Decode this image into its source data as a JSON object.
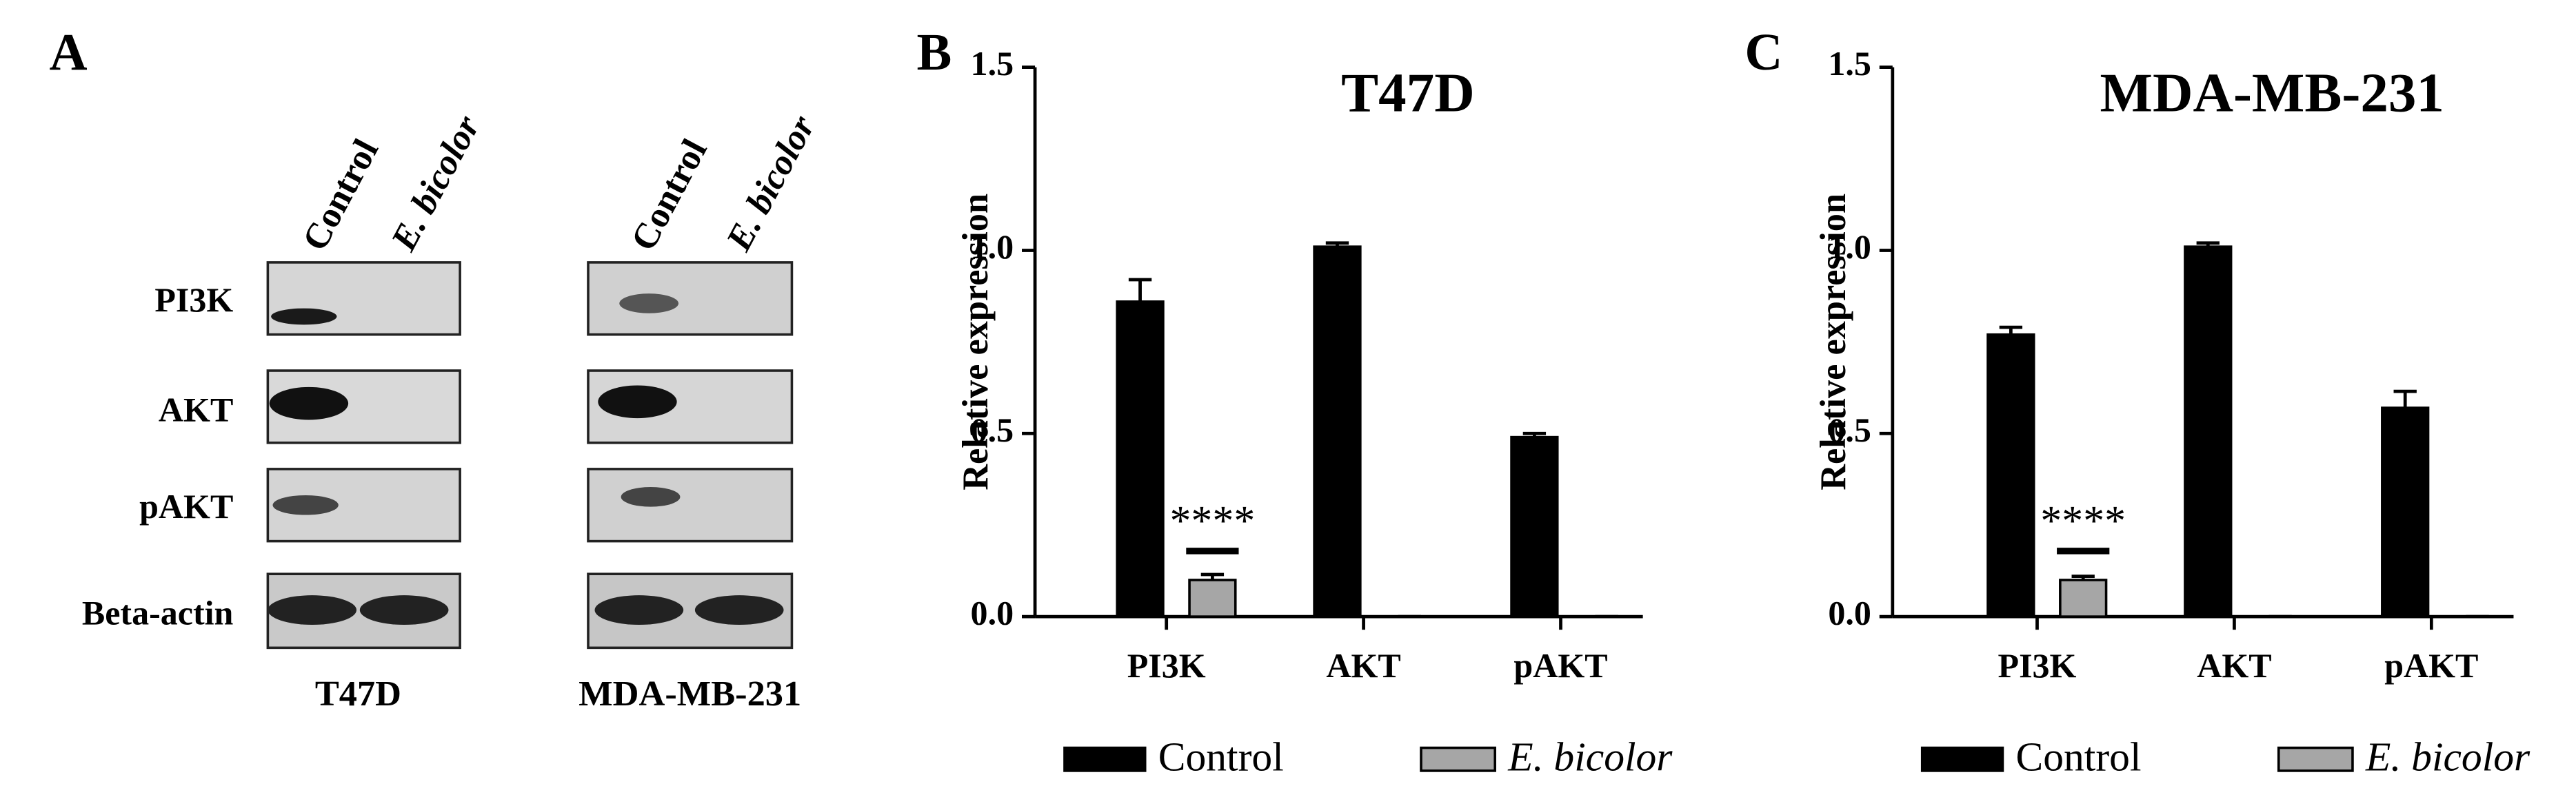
{
  "panels": [
    "A",
    "B",
    "C"
  ],
  "blot": {
    "columns": [
      "Control",
      "E. bicolor"
    ],
    "rows": [
      "PI3K",
      "AKT",
      "pAKT",
      "Beta-actin"
    ],
    "cell_lines": [
      "T47D",
      "MDA-MB-231"
    ]
  },
  "chart_data": [
    {
      "type": "bar",
      "title": "T47D",
      "y_label": "Relative expression",
      "categories": [
        "PI3K",
        "AKT",
        "pAKT"
      ],
      "series": [
        {
          "name": "Control",
          "color": "#000000",
          "values": [
            0.86,
            1.01,
            0.49
          ],
          "errors": [
            0.06,
            0.01,
            0.01
          ]
        },
        {
          "name": "E. bicolor",
          "color": "#a6a6a6",
          "values": [
            0.1,
            0,
            0
          ],
          "errors": [
            0.015,
            0,
            0
          ]
        }
      ],
      "annotation": "****",
      "ylim": [
        0,
        1.5
      ],
      "yticks": [
        {
          "value": 0,
          "label": "0.0"
        },
        0.5,
        {
          "value": 1,
          "label": "1.0"
        },
        1.5
      ],
      "grid": false,
      "legend": "bottom"
    },
    {
      "type": "bar",
      "title": "MDA-MB-231",
      "y_label": "Relative expression",
      "categories": [
        "PI3K",
        "AKT",
        "pAKT"
      ],
      "series": [
        {
          "name": "Control",
          "color": "#000000",
          "values": [
            0.77,
            1.01,
            0.57
          ],
          "errors": [
            0.02,
            0.01,
            0.045
          ]
        },
        {
          "name": "E. bicolor",
          "color": "#a6a6a6",
          "values": [
            0.1,
            0,
            0
          ],
          "errors": [
            0.01,
            0,
            0
          ]
        }
      ],
      "annotation": "****",
      "ylim": [
        0,
        1.5
      ],
      "yticks": [
        {
          "value": 0,
          "label": "0.0"
        },
        0.5,
        {
          "value": 1,
          "label": "1.0"
        },
        1.5
      ],
      "grid": false,
      "legend": "bottom"
    }
  ]
}
